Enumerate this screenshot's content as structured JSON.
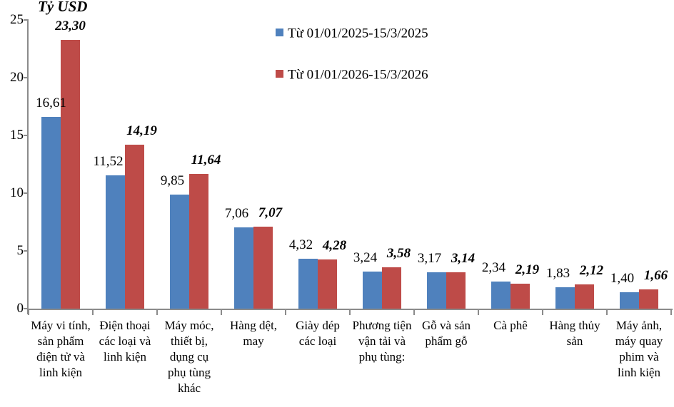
{
  "chart_data": {
    "type": "bar",
    "title": "Tỷ USD",
    "xlabel": "",
    "ylabel": "Tỷ USD",
    "ylim": [
      0,
      25
    ],
    "yticks": [
      0,
      5,
      10,
      15,
      20,
      25
    ],
    "grid": false,
    "legend_position": "top-center",
    "categories": [
      "Máy vi tính, sản phẩm điện tử và linh kiện",
      "Điện thoại các loại và linh kiện",
      "Máy móc, thiết bị, dụng cụ phụ tùng khác",
      "Hàng dệt, may",
      "Giày dép các loại",
      "Phương tiện vận tải và phụ tùng:",
      "Gỗ và sản phẩm gỗ",
      "Cà phê",
      "Hàng thủy sản",
      "Máy ảnh, máy quay phim và linh kiện"
    ],
    "series": [
      {
        "name": "Từ 01/01/2025-15/3/2025",
        "color": "#4F81BD",
        "values": [
          16.61,
          11.52,
          9.85,
          7.06,
          4.32,
          3.24,
          3.17,
          2.34,
          1.83,
          1.4
        ],
        "labels": [
          "16,61",
          "11,52",
          "9,85",
          "7,06",
          "4,32",
          "3,24",
          "3,17",
          "2,34",
          "1,83",
          "1,40"
        ]
      },
      {
        "name": "Từ 01/01/2026-15/3/2026",
        "color": "#BE4B48",
        "values": [
          23.3,
          14.19,
          11.64,
          7.07,
          4.28,
          3.58,
          3.14,
          2.19,
          2.12,
          1.66
        ],
        "labels": [
          "23,30",
          "14,19",
          "11,64",
          "7,07",
          "4,28",
          "3,58",
          "3,14",
          "2,19",
          "2,12",
          "1,66"
        ]
      }
    ],
    "axis_color": "#8b8b8b"
  }
}
